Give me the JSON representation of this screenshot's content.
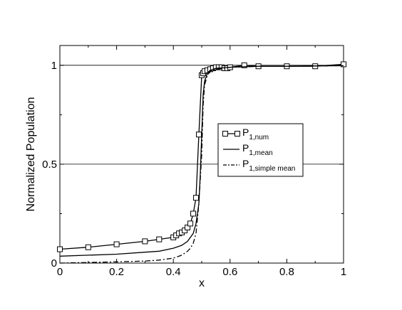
{
  "chart_data": {
    "type": "line",
    "title": "",
    "xlabel": "x",
    "ylabel": "Normalized Population",
    "xlim": [
      0,
      1
    ],
    "ylim": [
      0,
      1.1
    ],
    "xticks": [
      0,
      0.2,
      0.4,
      0.6,
      0.8,
      1
    ],
    "xtick_labels": [
      "0",
      "0.2",
      "0.4",
      "0.6",
      "0.8",
      "1"
    ],
    "yticks": [
      0,
      0.5,
      1
    ],
    "ytick_labels": [
      "0",
      "0.5",
      "1"
    ],
    "grid": "horizontal at 0.5 and 1",
    "legend_position": "center-right",
    "legend": [
      {
        "base": "P",
        "sub": "1,num",
        "style": "solid-square-markers"
      },
      {
        "base": "P",
        "sub": "1,mean",
        "style": "solid"
      },
      {
        "base": "P",
        "sub": "1,simple mean",
        "style": "dash-dot"
      }
    ],
    "series": [
      {
        "name": "P1,num",
        "style": "solid-square-markers",
        "x": [
          0,
          0.1,
          0.2,
          0.3,
          0.35,
          0.4,
          0.41,
          0.42,
          0.43,
          0.44,
          0.45,
          0.46,
          0.47,
          0.48,
          0.49,
          0.5,
          0.505,
          0.51,
          0.52,
          0.53,
          0.54,
          0.55,
          0.56,
          0.57,
          0.58,
          0.59,
          0.6,
          0.65,
          0.7,
          0.8,
          0.9,
          1.0
        ],
        "y": [
          0.07,
          0.08,
          0.095,
          0.11,
          0.12,
          0.13,
          0.14,
          0.15,
          0.155,
          0.165,
          0.18,
          0.2,
          0.25,
          0.33,
          0.65,
          0.95,
          0.96,
          0.97,
          0.975,
          0.98,
          0.985,
          0.99,
          0.99,
          0.99,
          0.985,
          0.985,
          0.99,
          1.0,
          0.995,
          0.995,
          0.995,
          1.005
        ]
      },
      {
        "name": "P1,mean",
        "style": "solid",
        "x": [
          0,
          0.1,
          0.2,
          0.3,
          0.35,
          0.4,
          0.43,
          0.45,
          0.47,
          0.48,
          0.49,
          0.495,
          0.5,
          0.505,
          0.51,
          0.52,
          0.53,
          0.55,
          0.6,
          0.7,
          0.8,
          0.9,
          1.0
        ],
        "y": [
          0.035,
          0.04,
          0.045,
          0.055,
          0.06,
          0.075,
          0.09,
          0.11,
          0.15,
          0.2,
          0.3,
          0.45,
          0.65,
          0.85,
          0.92,
          0.96,
          0.975,
          0.985,
          0.99,
          0.995,
          0.995,
          0.997,
          0.998
        ]
      },
      {
        "name": "P1,simple mean",
        "style": "dash-dot",
        "x": [
          0,
          0.1,
          0.2,
          0.3,
          0.35,
          0.4,
          0.43,
          0.45,
          0.46,
          0.47,
          0.48,
          0.49,
          0.5,
          0.505,
          0.51,
          0.52,
          0.53,
          0.55,
          0.6,
          0.7,
          0.8,
          0.9,
          1.0
        ],
        "y": [
          0.0,
          0.003,
          0.006,
          0.01,
          0.015,
          0.025,
          0.04,
          0.06,
          0.075,
          0.1,
          0.15,
          0.3,
          0.55,
          0.8,
          0.9,
          0.95,
          0.97,
          0.98,
          0.99,
          0.995,
          0.995,
          0.997,
          0.998
        ]
      }
    ]
  }
}
